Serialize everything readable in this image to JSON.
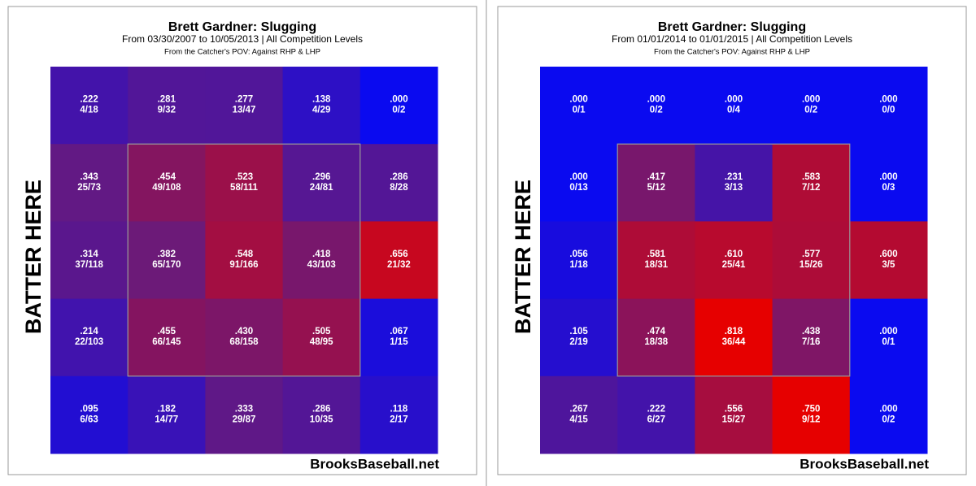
{
  "chart_data": [
    {
      "type": "heatmap",
      "title": "Brett Gardner: Slugging",
      "subtitle": "From 03/30/2007 to 10/05/2013 | All Competition Levels",
      "note": "From the Catcher's POV:  Against RHP & LHP",
      "y_label": "BATTER HERE",
      "watermark": "BrooksBaseball.net",
      "values": [
        [
          0.222,
          0.281,
          0.277,
          0.138,
          0.0
        ],
        [
          0.343,
          0.454,
          0.523,
          0.296,
          0.286
        ],
        [
          0.314,
          0.382,
          0.548,
          0.418,
          0.656
        ],
        [
          0.214,
          0.455,
          0.43,
          0.505,
          0.067
        ],
        [
          0.095,
          0.182,
          0.333,
          0.286,
          0.118
        ]
      ],
      "value_labels": [
        [
          ".222",
          ".281",
          ".277",
          ".138",
          ".000"
        ],
        [
          ".343",
          ".454",
          ".523",
          ".296",
          ".286"
        ],
        [
          ".314",
          ".382",
          ".548",
          ".418",
          ".656"
        ],
        [
          ".214",
          ".455",
          ".430",
          ".505",
          ".067"
        ],
        [
          ".095",
          ".182",
          ".333",
          ".286",
          ".118"
        ]
      ],
      "counts": [
        [
          "4/18",
          "9/32",
          "13/47",
          "4/29",
          "0/2"
        ],
        [
          "25/73",
          "49/108",
          "58/111",
          "24/81",
          "8/28"
        ],
        [
          "37/118",
          "65/170",
          "91/166",
          "43/103",
          "21/32"
        ],
        [
          "22/103",
          "66/145",
          "68/158",
          "48/95",
          "1/15"
        ],
        [
          "6/63",
          "14/77",
          "29/87",
          "10/35",
          "2/17"
        ]
      ],
      "clim": [
        0,
        0.75
      ],
      "colors": [
        "#0a0af0",
        "#6a1a7a",
        "#e60000"
      ]
    },
    {
      "type": "heatmap",
      "title": "Brett Gardner: Slugging",
      "subtitle": "From 01/01/2014 to 01/01/2015 | All Competition Levels",
      "note": "From the Catcher's POV:  Against RHP & LHP",
      "y_label": "BATTER HERE",
      "watermark": "BrooksBaseball.net",
      "values": [
        [
          0.0,
          0.0,
          0.0,
          0.0,
          0.0
        ],
        [
          0.0,
          0.417,
          0.231,
          0.583,
          0.0
        ],
        [
          0.056,
          0.581,
          0.61,
          0.577,
          0.6
        ],
        [
          0.105,
          0.474,
          0.818,
          0.438,
          0.0
        ],
        [
          0.267,
          0.222,
          0.556,
          0.75,
          0.0
        ]
      ],
      "value_labels": [
        [
          ".000",
          ".000",
          ".000",
          ".000",
          ".000"
        ],
        [
          ".000",
          ".417",
          ".231",
          ".583",
          ".000"
        ],
        [
          ".056",
          ".581",
          ".610",
          ".577",
          ".600"
        ],
        [
          ".105",
          ".474",
          ".818",
          ".438",
          ".000"
        ],
        [
          ".267",
          ".222",
          ".556",
          ".750",
          ".000"
        ]
      ],
      "counts": [
        [
          "0/1",
          "0/2",
          "0/4",
          "0/2",
          "0/0"
        ],
        [
          "0/13",
          "5/12",
          "3/13",
          "7/12",
          "0/3"
        ],
        [
          "1/18",
          "18/31",
          "25/41",
          "15/26",
          "3/5"
        ],
        [
          "2/19",
          "18/38",
          "36/44",
          "7/16",
          "0/1"
        ],
        [
          "4/15",
          "6/27",
          "15/27",
          "9/12",
          "0/2"
        ]
      ],
      "clim": [
        0,
        0.75
      ],
      "colors": [
        "#0a0af0",
        "#6a1a7a",
        "#e60000"
      ]
    }
  ]
}
